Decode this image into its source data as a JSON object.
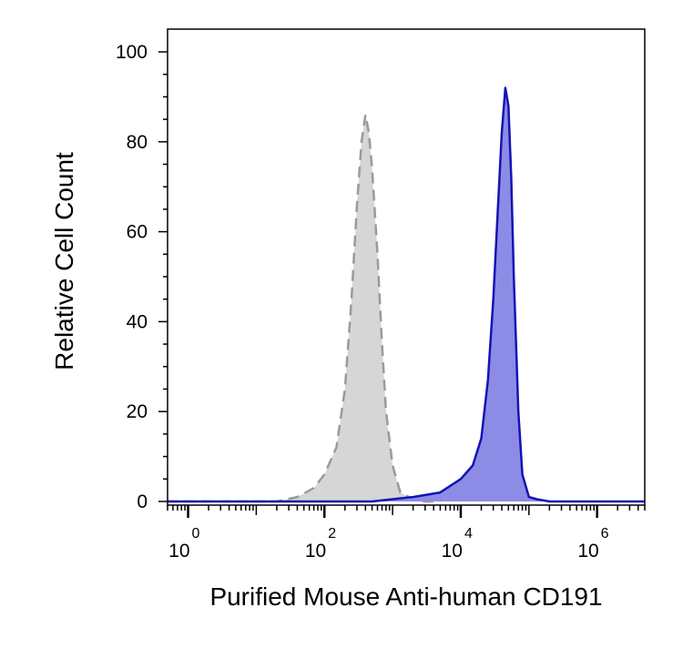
{
  "chart_data": {
    "type": "area",
    "title": "",
    "xlabel": "Purified Mouse Anti-human CD191",
    "ylabel": "Relative Cell Count",
    "x_scale": "log",
    "xlim": [
      0.5,
      5000000
    ],
    "ylim": [
      0,
      100
    ],
    "yticks": [
      0,
      20,
      40,
      60,
      80,
      100
    ],
    "xticks": [
      {
        "base": "10",
        "exp": "0",
        "value": 1
      },
      {
        "base": "10",
        "exp": "2",
        "value": 100
      },
      {
        "base": "10",
        "exp": "4",
        "value": 10000
      },
      {
        "base": "10",
        "exp": "6",
        "value": 1000000
      }
    ],
    "grid": false,
    "legend": "none",
    "series": [
      {
        "color": "#9a9a9a",
        "fill": "#d6d6d6",
        "line_style": "dashed",
        "x": [
          0.5,
          5,
          20,
          40,
          70,
          100,
          150,
          200,
          250,
          300,
          350,
          400,
          450,
          500,
          600,
          700,
          800,
          1000,
          1300,
          2000,
          3000,
          5000
        ],
        "y": [
          0,
          0,
          0,
          1,
          3,
          6,
          12,
          25,
          45,
          66,
          80,
          86,
          82,
          74,
          55,
          35,
          20,
          8,
          2,
          0.5,
          0,
          0
        ]
      },
      {
        "color": "#1414b4",
        "fill": "#8c8ce6",
        "line_style": "solid",
        "x": [
          0.5,
          100,
          500,
          1000,
          2000,
          5000,
          10000,
          15000,
          20000,
          25000,
          30000,
          35000,
          40000,
          45000,
          50000,
          55000,
          60000,
          70000,
          80000,
          100000,
          130000,
          200000,
          500000,
          5000000
        ],
        "y": [
          0,
          0,
          0,
          0.5,
          1,
          2,
          5,
          8,
          14,
          27,
          45,
          65,
          82,
          92,
          88,
          72,
          50,
          20,
          6,
          1,
          0.5,
          0,
          0,
          0
        ]
      }
    ]
  }
}
